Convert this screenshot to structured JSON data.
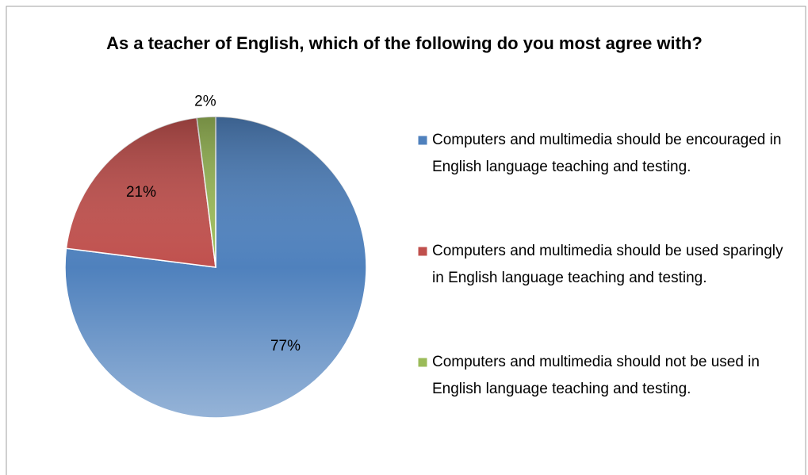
{
  "chart_data": {
    "type": "pie",
    "title": "As a teacher of English, which of the following do you most agree with?",
    "categories": [
      "Computers and multimedia should be encouraged in English language teaching and testing.",
      "Computers and multimedia should be used sparingly in English language teaching and testing.",
      "Computers and multimedia should not be used in English language teaching and testing."
    ],
    "values": [
      77,
      21,
      2
    ],
    "value_labels": [
      "77%",
      "21%",
      "2%"
    ],
    "colors": [
      "#4f81bd",
      "#c0504d",
      "#9bbb59"
    ],
    "legend": "right"
  }
}
